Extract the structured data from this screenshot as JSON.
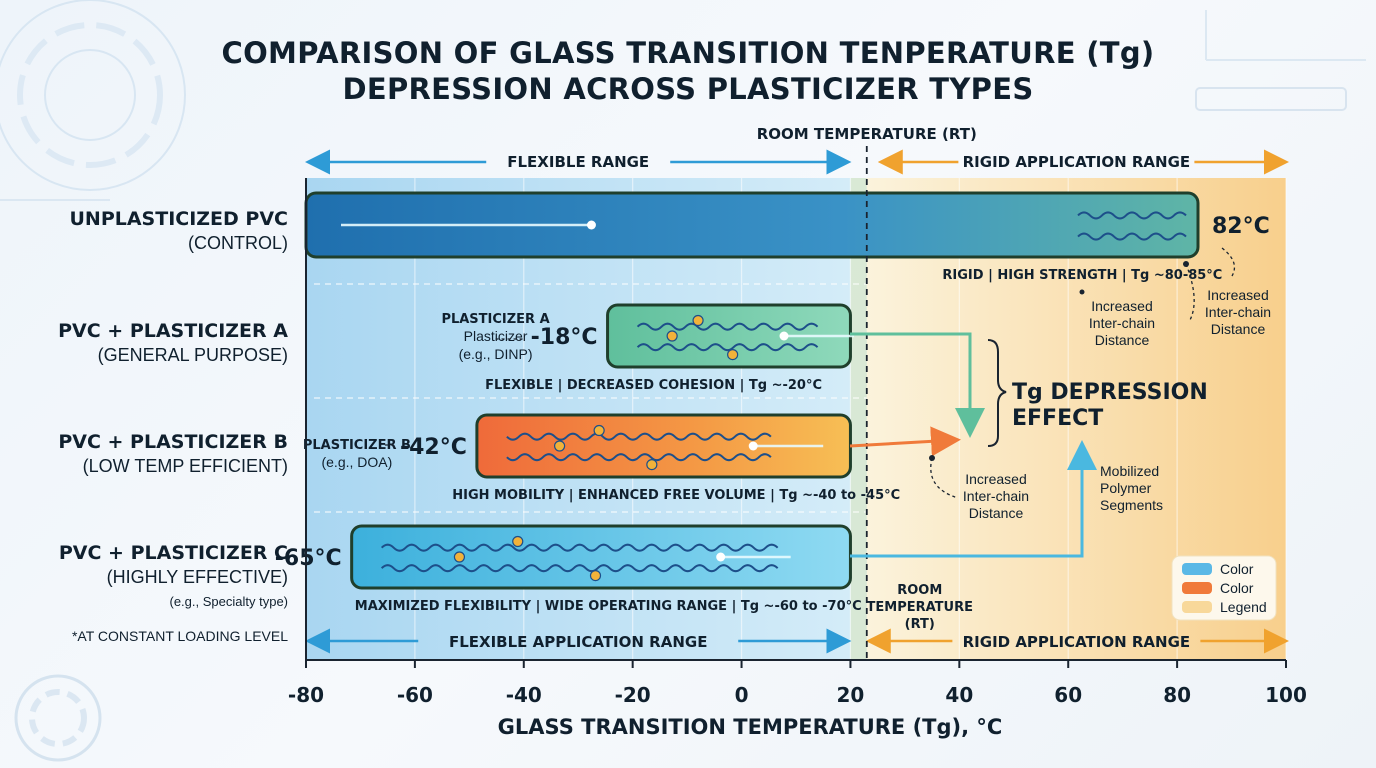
{
  "chart_data": {
    "type": "bar",
    "title": "COMPARISON OF GLASS TRANSITION TENPERATURE (Tg) DEPRESSION ACROSS PLASTICIZER TYPES",
    "title_lines": [
      "COMPARISON OF GLASS TRANSITION TENPERATURE (Tg)",
      "DEPRESSION ACROSS PLASTICIZER TYPES"
    ],
    "orientation": "horizontal",
    "xlabel": "GLASS TRANSITION TEMPERATURE (Tg), °C",
    "xlim": [
      -80,
      100
    ],
    "xticks": [
      -80,
      -60,
      -40,
      -20,
      0,
      20,
      40,
      60,
      80,
      100
    ],
    "room_temperature": 23,
    "room_temperature_label": "ROOM TEMPERATURE (RT)",
    "room_temperature_label_lower": [
      "ROOM",
      "TEMPERATURE",
      "(RT)"
    ],
    "flexible_range_label": "FLEXIBLE RANGE",
    "rigid_range_label": "RIGID APPLICATION RANGE",
    "flexible_app_label": "FLEXIBLE APPLICATION RANGE",
    "rigid_app_label": "RIGID APPLICATION RANGE",
    "footnote": "*AT CONSTANT LOADING LEVEL",
    "bars": [
      {
        "category": "UNPLASTICIZED PVC",
        "subtitle": "(CONTROL)",
        "note": "",
        "value": 82,
        "value_label": "82°C",
        "caption": "RIGID | HIGH STRENGTH | Tg ~80-85°C",
        "color": "#2e86c1",
        "left_label": [],
        "marker": 82
      },
      {
        "category": "PVC + PLASTICIZER A",
        "subtitle": "(GENERAL PURPOSE)",
        "note": "",
        "value": -18,
        "value_label": "-18°C",
        "caption": "FLEXIBLE | DECREASED COHESION | Tg ~-20°C",
        "color": "#6fc6a3",
        "left_label": [
          "PLASTICIZER A",
          "Plasticizer",
          "(e.g., DINP)"
        ],
        "marker": 20
      },
      {
        "category": "PVC + PLASTICIZER B",
        "subtitle": "(LOW TEMP EFFICIENT)",
        "note": "",
        "value": -42,
        "value_label": "-42°C",
        "caption": "HIGH MOBILITY | ENHANCED FREE VOLUME | Tg ~-40 to -45°C",
        "color": "#f07a3a",
        "left_label": [
          "PLASTICIZER B",
          "(e.g., DOA)"
        ],
        "marker": 20
      },
      {
        "category": "PVC + PLASTICIZER C",
        "subtitle": "(HIGHLY EFFECTIVE)",
        "note": "(e.g., Specialty type)",
        "value": -65,
        "value_label": "-65°C",
        "caption": "MAXIMIZED FLEXIBILITY | WIDE OPERATING RANGE | Tg ~-60 to -70°C",
        "color": "#5cc4e4",
        "left_label": [],
        "marker": 20
      }
    ],
    "annotations": {
      "effect_label": [
        "Tg DEPRESSION",
        "EFFECT"
      ],
      "inter_chain_1": [
        "Increased",
        "Inter-chain",
        "Distance"
      ],
      "inter_chain_2": [
        "Increased",
        "Inter-chain",
        "Distance"
      ],
      "inter_chain_3": [
        "Increased",
        "Inter-chain",
        "Distance"
      ],
      "mobilized": [
        "Mobilized",
        "Polymer",
        "Segments"
      ]
    },
    "legend": {
      "placement": "bottom-right",
      "entries": [
        {
          "label": "Color",
          "color": "#5ab8e6"
        },
        {
          "label": "Color",
          "color": "#f07a3a"
        },
        {
          "label": "Legend",
          "color": "#f8d89a"
        }
      ]
    },
    "grid": true
  }
}
